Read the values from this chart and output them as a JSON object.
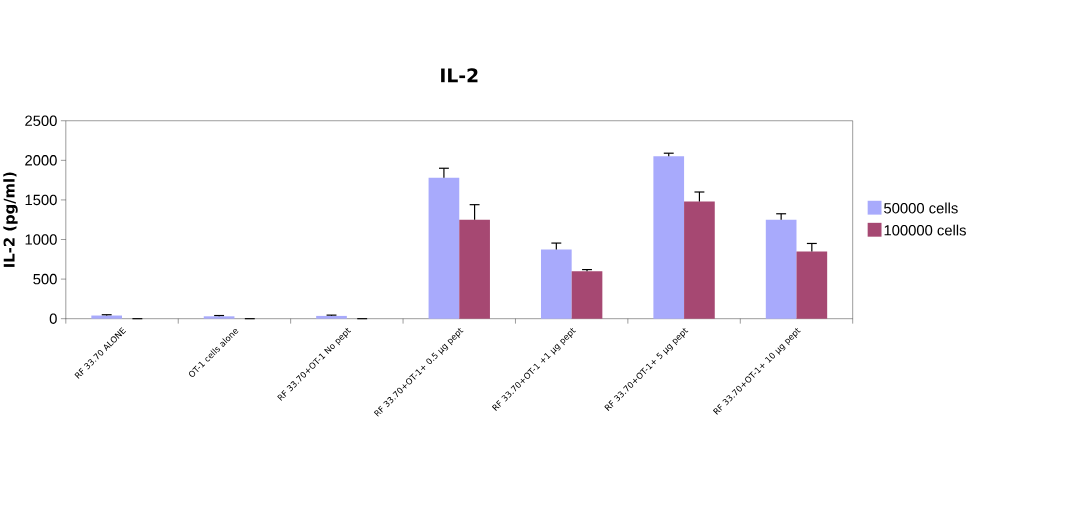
{
  "chart_data": {
    "type": "bar",
    "title": "IL-2",
    "ylabel": "IL-2 (pg/ml)",
    "categories": [
      "RF 33.70 ALONE",
      "OT-1 cells alone",
      "RF 33.70+OT-1 No pept",
      "RF 33.70+OT-1+ 0.5 µg pept",
      "RF 33.70+OT-1 +1 µg pept",
      "RF 33.70+OT-1+ 5 µg pept",
      "RF 33.70+OT-1+ 10 µg pept"
    ],
    "series": [
      {
        "name": "50000 cells",
        "color": "#a8aafc",
        "values": [
          40,
          30,
          35,
          1780,
          875,
          2050,
          1250
        ],
        "errors": [
          10,
          10,
          10,
          120,
          80,
          40,
          75
        ]
      },
      {
        "name": "100000 cells",
        "color": "#a64872",
        "values": [
          0,
          0,
          0,
          1250,
          600,
          1480,
          850
        ],
        "errors": [
          null,
          null,
          null,
          190,
          20,
          120,
          100
        ]
      }
    ],
    "ylim": [
      0,
      2500
    ],
    "yticks": [
      0,
      500,
      1000,
      1500,
      2000,
      2500
    ],
    "legend": "right"
  }
}
